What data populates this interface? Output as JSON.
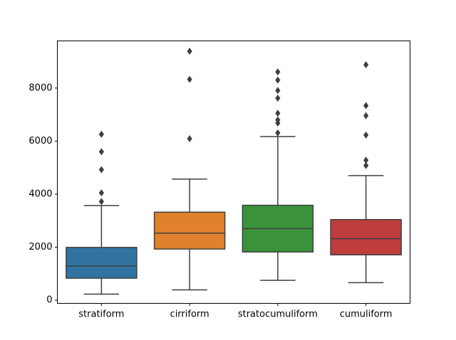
{
  "chart_data": {
    "type": "box",
    "title": "",
    "xlabel": "",
    "ylabel": "",
    "categories": [
      "stratiform",
      "cirriform",
      "stratocumuliform",
      "cumuliform"
    ],
    "ylim": [
      -120,
      9780
    ],
    "yticks": [
      0,
      2000,
      4000,
      6000,
      8000
    ],
    "ytick_labels": [
      "0",
      "2000",
      "4000",
      "6000",
      "8000"
    ],
    "grid": false,
    "legend": "none",
    "series": [
      {
        "category": "stratiform",
        "color": "#3274a1",
        "whisker_low": 230,
        "q1": 830,
        "median": 1290,
        "q3": 1990,
        "whisker_high": 3570,
        "outliers": [
          3720,
          4050,
          4920,
          5600,
          6260
        ]
      },
      {
        "category": "cirriform",
        "color": "#e1812c",
        "whisker_low": 390,
        "q1": 1930,
        "median": 2530,
        "q3": 3320,
        "whisker_high": 4570,
        "outliers": [
          6090,
          8330,
          9390
        ]
      },
      {
        "category": "stratocumuliform",
        "color": "#3a923a",
        "whisker_low": 750,
        "q1": 1820,
        "median": 2700,
        "q3": 3580,
        "whisker_high": 6170,
        "outliers": [
          6310,
          6680,
          6800,
          7050,
          7620,
          7910,
          8300,
          8610
        ]
      },
      {
        "category": "cumuliform",
        "color": "#c03d3e",
        "whisker_low": 660,
        "q1": 1710,
        "median": 2320,
        "q3": 3040,
        "whisker_high": 4700,
        "outliers": [
          5080,
          5280,
          6230,
          6960,
          7340,
          8880
        ]
      }
    ]
  }
}
